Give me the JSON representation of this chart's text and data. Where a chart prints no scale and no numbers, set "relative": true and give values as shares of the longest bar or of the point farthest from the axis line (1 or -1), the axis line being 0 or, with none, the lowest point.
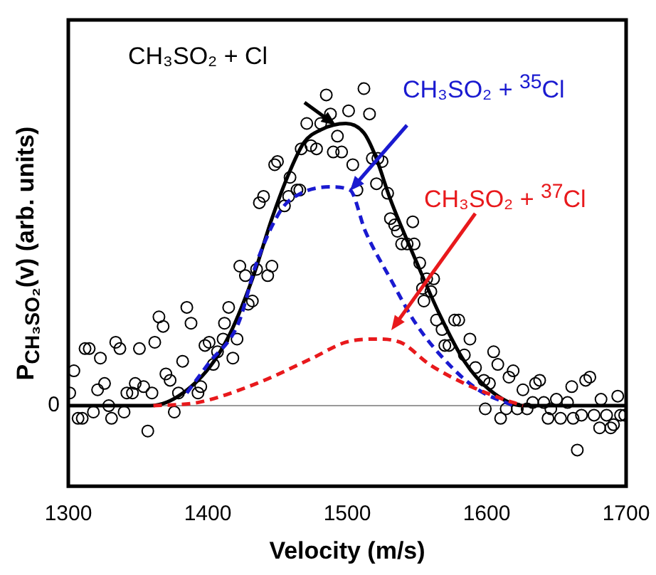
{
  "chart_data": {
    "type": "line",
    "xlabel": "Velocity (m/s)",
    "ylabel": "P$_{CH₃SO₂}$(v) (arb. units)",
    "relative": true,
    "xlim": [
      1300,
      1700
    ],
    "xticks": [
      1300,
      1400,
      1500,
      1600,
      1700
    ],
    "grid": false,
    "legend": false,
    "ref_lines": [
      {
        "axis": "y",
        "value": 0,
        "label": "0",
        "color": "#999999"
      }
    ],
    "series": [
      {
        "type": "scatter",
        "color": "#000000",
        "marker": "circle",
        "x": [
          1301,
          1304,
          1307,
          1310,
          1312,
          1315,
          1318,
          1321,
          1323,
          1326,
          1329,
          1331,
          1334,
          1337,
          1340,
          1342,
          1346,
          1348,
          1351,
          1354,
          1357,
          1360,
          1362,
          1365,
          1368,
          1370,
          1373,
          1376,
          1379,
          1382,
          1385,
          1388,
          1393,
          1395,
          1398,
          1401,
          1404,
          1407,
          1411,
          1412,
          1415,
          1418,
          1421,
          1423,
          1427,
          1429,
          1432,
          1435,
          1443,
          1446,
          1437,
          1440,
          1448,
          1450,
          1455,
          1458,
          1459,
          1464,
          1466,
          1467,
          1471,
          1474,
          1478,
          1481,
          1485,
          1488,
          1490,
          1493,
          1496,
          1501,
          1504,
          1507,
          1512,
          1516,
          1518,
          1522,
          1525,
          1521,
          1529,
          1531,
          1534,
          1536,
          1539,
          1543,
          1547,
          1548,
          1552,
          1554,
          1557,
          1560,
          1562,
          1555,
          1564,
          1568,
          1570,
          1573,
          1577,
          1580,
          1584,
          1588,
          1592,
          1598,
          1599,
          1602,
          1605,
          1608,
          1610,
          1614,
          1616,
          1619,
          1622,
          1626,
          1629,
          1633,
          1635,
          1638,
          1641,
          1644,
          1646,
          1650,
          1653,
          1658,
          1661,
          1662,
          1665,
          1668,
          1671,
          1674,
          1677,
          1681,
          1682,
          1686,
          1689,
          1691,
          1694,
          1696,
          1699
        ],
        "values": [
          0.04,
          0.11,
          -0.04,
          -0.04,
          0.18,
          0.18,
          -0.02,
          0.05,
          0.15,
          0.07,
          0.0,
          -0.04,
          0.2,
          0.18,
          -0.02,
          0.04,
          0.04,
          0.07,
          0.18,
          0.06,
          -0.08,
          0.04,
          0.2,
          0.28,
          0.25,
          0.1,
          0.08,
          -0.02,
          0.04,
          0.14,
          0.31,
          0.26,
          0.04,
          0.06,
          0.19,
          0.2,
          0.13,
          0.17,
          0.21,
          0.26,
          0.31,
          0.15,
          0.21,
          0.44,
          0.41,
          0.32,
          0.33,
          0.43,
          0.41,
          0.44,
          0.64,
          0.66,
          0.76,
          0.77,
          0.63,
          0.66,
          0.72,
          0.68,
          0.68,
          0.81,
          0.89,
          0.82,
          0.81,
          0.89,
          0.98,
          0.92,
          0.8,
          0.85,
          0.8,
          0.93,
          0.76,
          0.68,
          1.0,
          0.92,
          0.78,
          0.78,
          0.77,
          0.7,
          0.67,
          0.59,
          0.57,
          0.55,
          0.51,
          0.51,
          0.58,
          0.51,
          0.45,
          0.37,
          0.4,
          0.36,
          0.4,
          0.33,
          0.27,
          0.24,
          0.19,
          0.19,
          0.27,
          0.27,
          0.16,
          0.21,
          0.12,
          0.08,
          -0.01,
          0.07,
          0.17,
          0.13,
          -0.04,
          -0.01,
          0.09,
          0.11,
          -0.01,
          0.05,
          -0.01,
          0.01,
          0.07,
          0.08,
          0.01,
          -0.04,
          -0.01,
          0.02,
          -0.04,
          0.01,
          0.06,
          -0.04,
          -0.14,
          -0.03,
          0.08,
          0.09,
          -0.03,
          -0.07,
          0.02,
          -0.03,
          -0.07,
          -0.06,
          0.03,
          -0.03,
          -0.03
        ]
      },
      {
        "name": "CH₃SO₂ + Cl",
        "color": "#000000",
        "line_style": "solid",
        "marker": "none",
        "x": [
          1300,
          1359,
          1393,
          1414,
          1432,
          1446,
          1457,
          1469,
          1481,
          1499,
          1512,
          1520,
          1531,
          1549,
          1566,
          1584,
          1602,
          1626,
          1700
        ],
        "values": [
          0,
          0,
          0.08,
          0.21,
          0.4,
          0.59,
          0.72,
          0.83,
          0.87,
          0.89,
          0.86,
          0.79,
          0.65,
          0.46,
          0.29,
          0.14,
          0.05,
          0,
          0
        ]
      },
      {
        "name": "CH₃SO₂ + $^{35}$Cl",
        "color": "#1a1ad0",
        "line_style": "dashed",
        "marker": "none",
        "x": [
          1385,
          1400,
          1422,
          1435,
          1453,
          1467,
          1488,
          1502,
          1513,
          1531,
          1549,
          1573,
          1594,
          1619
        ],
        "values": [
          0.04,
          0.13,
          0.26,
          0.45,
          0.62,
          0.67,
          0.69,
          0.68,
          0.55,
          0.4,
          0.26,
          0.13,
          0.05,
          0
        ]
      },
      {
        "name": "CH₃SO₂ + $^{37}$Cl",
        "color": "#e8191c",
        "line_style": "dashed",
        "marker": "none",
        "x": [
          1361,
          1393,
          1435,
          1475,
          1499,
          1520,
          1538,
          1559,
          1584,
          1612,
          1626
        ],
        "values": [
          0,
          0.01,
          0.07,
          0.15,
          0.2,
          0.21,
          0.2,
          0.13,
          0.07,
          0.02,
          0
        ]
      }
    ]
  }
}
